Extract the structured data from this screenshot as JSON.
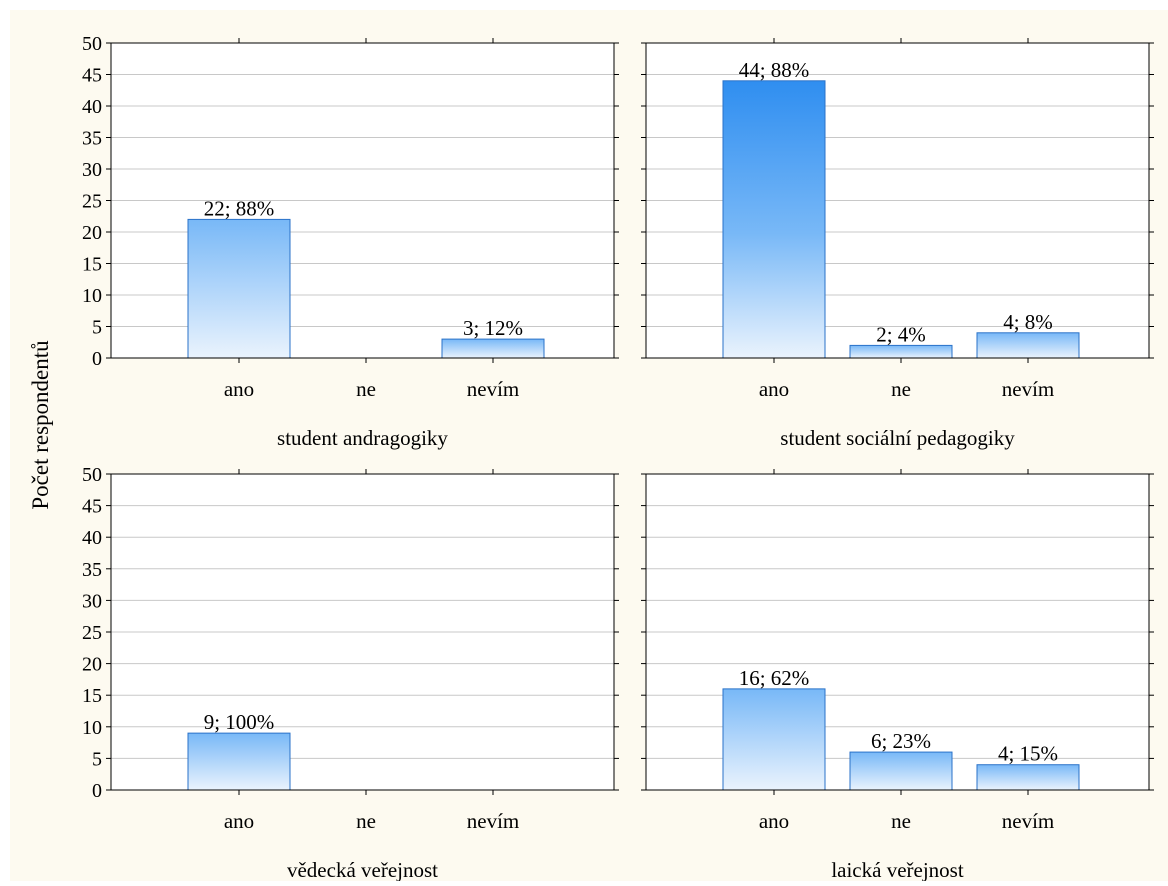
{
  "ylabel": "Počet respondentů",
  "chart_data": [
    {
      "type": "bar",
      "title": "student andragogiky",
      "categories": [
        "ano",
        "ne",
        "nevím"
      ],
      "values": [
        22,
        0,
        3
      ],
      "labels": [
        "22; 88%",
        "",
        "3; 12%"
      ],
      "ylim": [
        0,
        50
      ],
      "yticks": [
        "0",
        "5",
        "10",
        "15",
        "20",
        "25",
        "30",
        "35",
        "40",
        "45",
        "50"
      ],
      "grid": true
    },
    {
      "type": "bar",
      "title": "student sociální pedagogiky",
      "categories": [
        "ano",
        "ne",
        "nevím"
      ],
      "values": [
        44,
        2,
        4
      ],
      "labels": [
        "44; 88%",
        "2; 4%",
        "4; 8%"
      ],
      "ylim": [
        0,
        50
      ],
      "grid": true
    },
    {
      "type": "bar",
      "title": "vědecká veřejnost",
      "categories": [
        "ano",
        "ne",
        "nevím"
      ],
      "values": [
        9,
        0,
        0
      ],
      "labels": [
        "9; 100%",
        "",
        ""
      ],
      "ylim": [
        0,
        50
      ],
      "yticks": [
        "0",
        "5",
        "10",
        "15",
        "20",
        "25",
        "30",
        "35",
        "40",
        "45",
        "50"
      ],
      "grid": true
    },
    {
      "type": "bar",
      "title": "laická veřejnost",
      "categories": [
        "ano",
        "ne",
        "nevím"
      ],
      "values": [
        16,
        6,
        4
      ],
      "labels": [
        "16; 62%",
        "6; 23%",
        "4; 15%"
      ],
      "ylim": [
        0,
        50
      ],
      "grid": true
    }
  ],
  "colors": {
    "background": "#fdfaf0",
    "plot_background": "#ffffff",
    "bar_top": "#78b8f7",
    "bar_top_tall": "#2f8ef0",
    "bar_bottom": "#eaf3fd",
    "bar_edge": "#2a72c8",
    "grid": "#c8c8c8"
  }
}
